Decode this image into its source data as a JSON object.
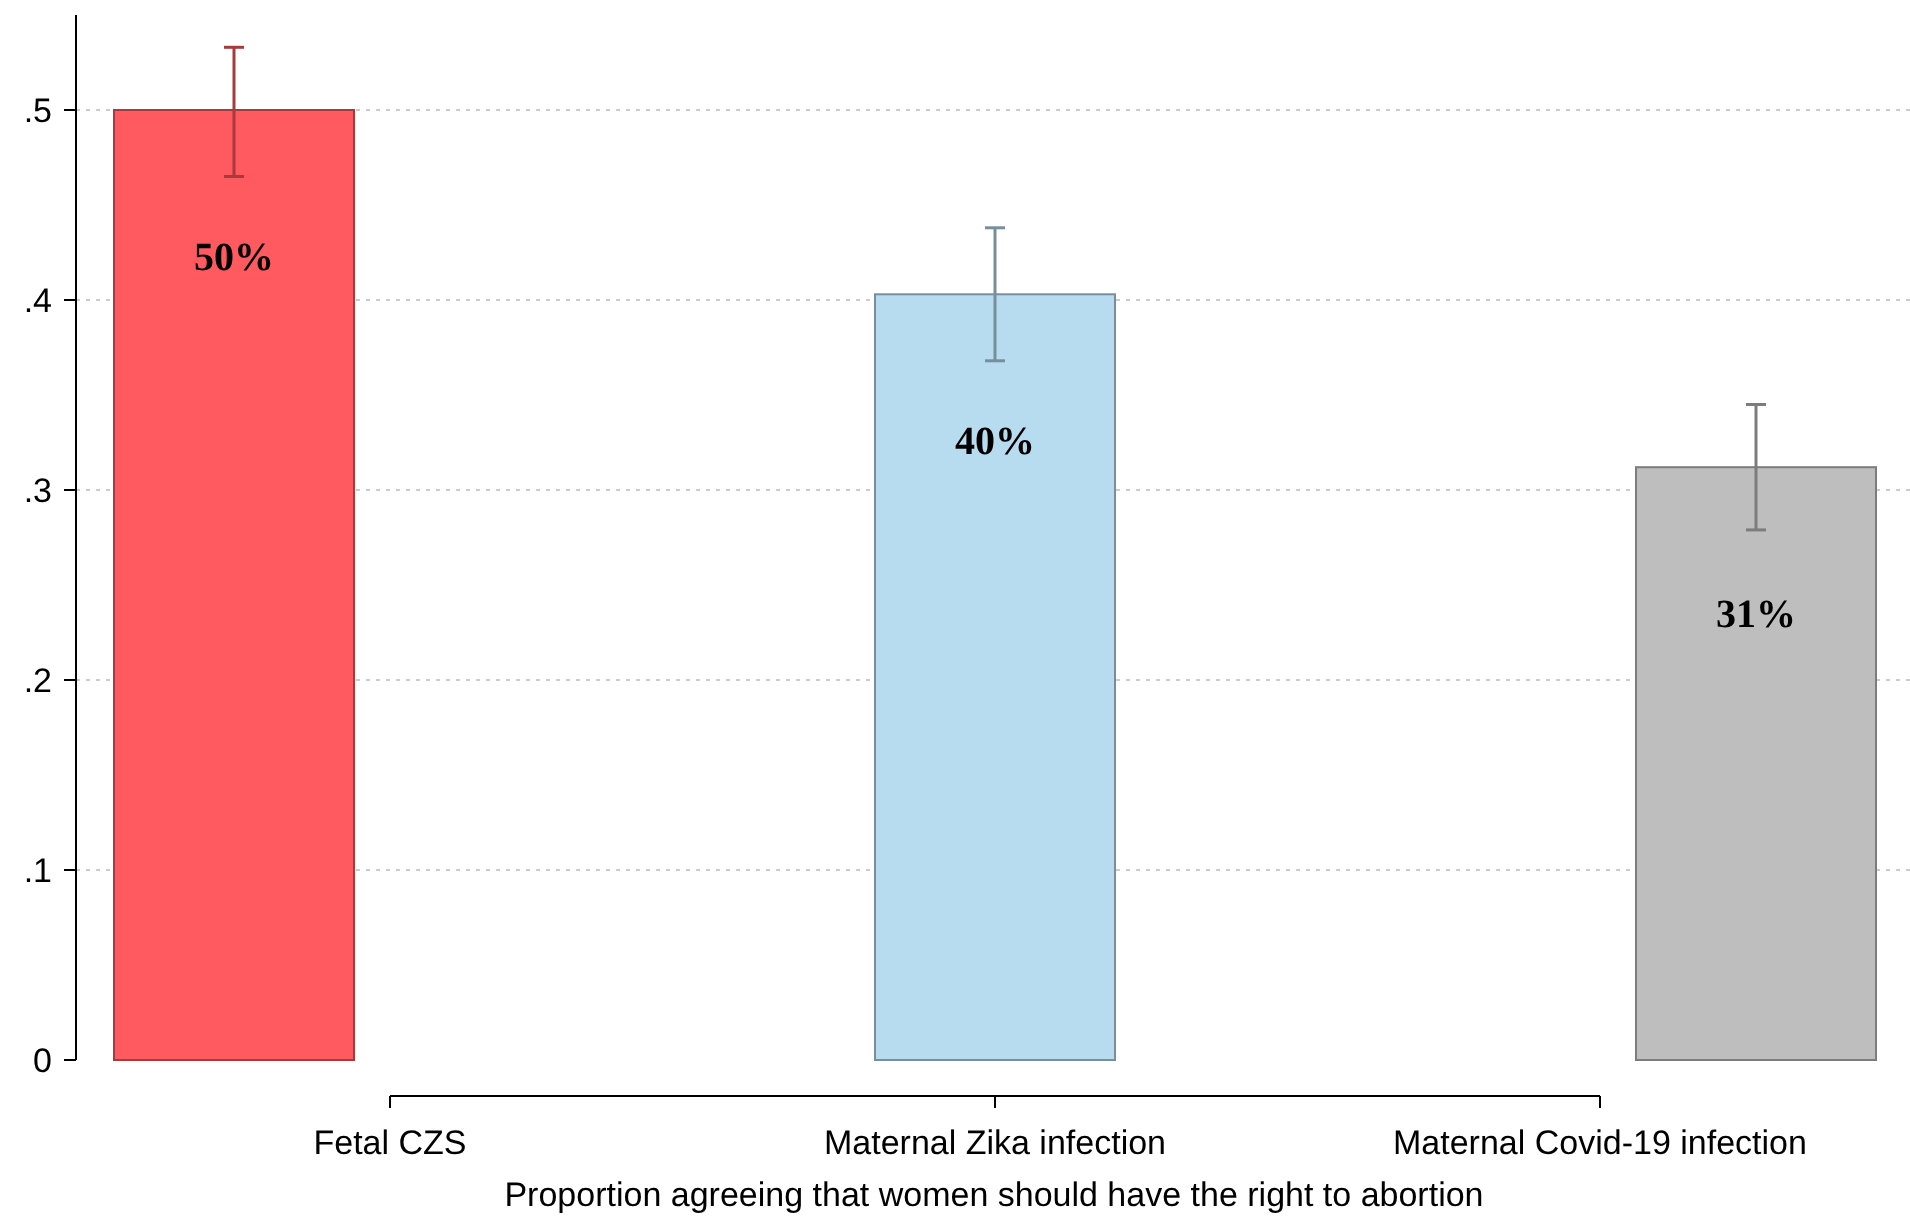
{
  "chart_data": {
    "type": "bar",
    "xlabel": "Proportion agreeing that women should have the right to abortion",
    "categories": [
      "Fetal CZS",
      "Maternal Zika infection",
      "Maternal Covid-19 infection"
    ],
    "values": [
      0.5,
      0.403,
      0.312
    ],
    "colors": [
      "#ff5a5f",
      "#b7dcef",
      "#bebebe"
    ],
    "errors": [
      [
        0.465,
        0.533
      ],
      [
        0.368,
        0.438
      ],
      [
        0.279,
        0.345
      ]
    ],
    "value_labels": [
      "50%",
      "40%",
      "31%"
    ],
    "ylim": [
      0,
      0.55
    ],
    "yticks": [
      {
        "value": 0,
        "label": "0"
      },
      {
        "value": 0.1,
        "label": ".1"
      },
      {
        "value": 0.2,
        "label": ".2"
      },
      {
        "value": 0.3,
        "label": ".3"
      },
      {
        "value": 0.4,
        "label": ".4"
      },
      {
        "value": 0.5,
        "label": ".5"
      }
    ],
    "grid": "y"
  }
}
